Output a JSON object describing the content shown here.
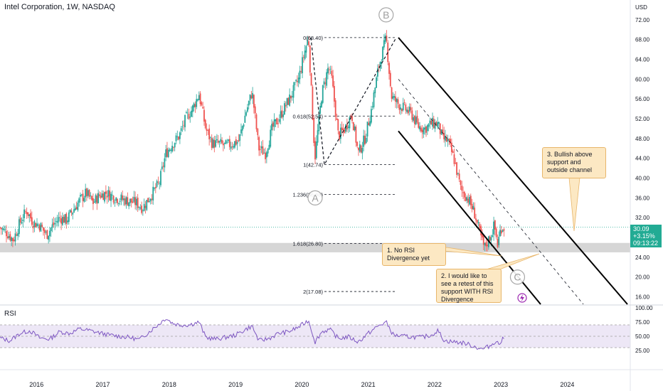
{
  "header": {
    "title": "Intel Corporation, 1W, NASDAQ",
    "currency": "USD"
  },
  "rsi_panel": {
    "label": "RSI"
  },
  "price_tag": {
    "price": "30.09",
    "change": "+3.15%",
    "time": "09:13:22"
  },
  "notes": [
    "1. No RSI Divergence yet",
    "2. I would like to see a retest of this support WITH RSI Divergence",
    "3. Bullish above support and outside channel"
  ],
  "wave_labels": [
    "A",
    "B",
    "C"
  ],
  "colors": {
    "up": "#26a69a",
    "down": "#ef5350",
    "rsi": "#7e57c2",
    "rsi_band": "#ede7f6",
    "support_zone": "#cfcfcf",
    "price_line": "#22ab94",
    "note_bg": "#fce8c3",
    "note_border": "#e8b66b",
    "lightning": "#9c27b0"
  },
  "chart_data": [
    {
      "type": "candlestick",
      "title": "Intel Corporation, 1W, NASDAQ",
      "x_ticks": [
        2016,
        2017,
        2018,
        2019,
        2020,
        2021,
        2022,
        2023,
        2024
      ],
      "y_ticks": [
        "72.00",
        "68.00",
        "64.00",
        "60.00",
        "56.00",
        "52.00",
        "48.00",
        "44.00",
        "40.00",
        "36.00",
        "32.00",
        "28.00",
        "24.00",
        "20.00",
        "16.00"
      ],
      "ylim": [
        14.5,
        76
      ],
      "xlim": [
        2015.45,
        2024.95
      ],
      "current_price": 30.09,
      "close_path": [
        [
          2015.45,
          30.0
        ],
        [
          2015.55,
          29.0
        ],
        [
          2015.65,
          27.5
        ],
        [
          2015.75,
          31.0
        ],
        [
          2015.85,
          33.5
        ],
        [
          2015.95,
          31.0
        ],
        [
          2016.05,
          30.5
        ],
        [
          2016.15,
          28.5
        ],
        [
          2016.25,
          30.5
        ],
        [
          2016.35,
          32.0
        ],
        [
          2016.45,
          31.5
        ],
        [
          2016.55,
          33.5
        ],
        [
          2016.65,
          35.5
        ],
        [
          2016.75,
          37.0
        ],
        [
          2016.85,
          35.0
        ],
        [
          2016.95,
          36.5
        ],
        [
          2017.05,
          37.0
        ],
        [
          2017.2,
          36.0
        ],
        [
          2017.35,
          35.5
        ],
        [
          2017.5,
          35.0
        ],
        [
          2017.6,
          34.0
        ],
        [
          2017.7,
          36.0
        ],
        [
          2017.85,
          39.0
        ],
        [
          2017.95,
          45.0
        ],
        [
          2018.05,
          47.0
        ],
        [
          2018.15,
          48.5
        ],
        [
          2018.25,
          52.0
        ],
        [
          2018.35,
          54.0
        ],
        [
          2018.45,
          57.0
        ],
        [
          2018.55,
          50.0
        ],
        [
          2018.65,
          47.0
        ],
        [
          2018.75,
          47.0
        ],
        [
          2018.85,
          46.5
        ],
        [
          2018.95,
          47.0
        ],
        [
          2019.05,
          47.5
        ],
        [
          2019.15,
          53.0
        ],
        [
          2019.25,
          57.5
        ],
        [
          2019.35,
          46.0
        ],
        [
          2019.45,
          45.0
        ],
        [
          2019.55,
          50.0
        ],
        [
          2019.65,
          52.0
        ],
        [
          2019.75,
          54.5
        ],
        [
          2019.85,
          57.0
        ],
        [
          2019.95,
          60.0
        ],
        [
          2020.05,
          66.0
        ],
        [
          2020.1,
          68.4
        ],
        [
          2020.18,
          48.0
        ],
        [
          2020.2,
          44.5
        ],
        [
          2020.3,
          57.0
        ],
        [
          2020.4,
          62.5
        ],
        [
          2020.45,
          60.0
        ],
        [
          2020.55,
          48.5
        ],
        [
          2020.65,
          50.0
        ],
        [
          2020.75,
          53.0
        ],
        [
          2020.85,
          45.0
        ],
        [
          2020.95,
          48.0
        ],
        [
          2021.05,
          54.0
        ],
        [
          2021.15,
          62.0
        ],
        [
          2021.27,
          68.4
        ],
        [
          2021.35,
          56.5
        ],
        [
          2021.45,
          55.0
        ],
        [
          2021.55,
          54.0
        ],
        [
          2021.65,
          53.0
        ],
        [
          2021.75,
          50.5
        ],
        [
          2021.85,
          50.0
        ],
        [
          2021.95,
          51.0
        ],
        [
          2022.05,
          51.0
        ],
        [
          2022.12,
          48.0
        ],
        [
          2022.2,
          47.5
        ],
        [
          2022.3,
          43.5
        ],
        [
          2022.4,
          37.5
        ],
        [
          2022.5,
          36.0
        ],
        [
          2022.6,
          33.0
        ],
        [
          2022.7,
          28.0
        ],
        [
          2022.75,
          25.8
        ],
        [
          2022.85,
          28.5
        ],
        [
          2022.9,
          30.5
        ],
        [
          2022.95,
          26.5
        ],
        [
          2023.0,
          30.0
        ],
        [
          2023.05,
          30.09
        ]
      ],
      "annotations": {
        "fib_levels": [
          {
            "label": "0(68.40)",
            "value": 68.4
          },
          {
            "label": "0.618(52.54)",
            "value": 52.54
          },
          {
            "label": "1(42.74)",
            "value": 42.74
          },
          {
            "label": "1.236(36.68)",
            "value": 36.68
          },
          {
            "label": "1.618(26.80)",
            "value": 26.8
          },
          {
            "label": "2(17.08)",
            "value": 17.08
          }
        ],
        "support_zone": [
          25.0,
          26.9
        ],
        "waves": [
          {
            "label": "A",
            "x": 2020.2,
            "y": 36.0
          },
          {
            "label": "B",
            "x": 2021.27,
            "y": 73.0
          },
          {
            "label": "C",
            "x": 2023.25,
            "y": 20.0
          }
        ]
      }
    },
    {
      "type": "line",
      "title": "RSI",
      "x_ticks": [
        2016,
        2017,
        2018,
        2019,
        2020,
        2021,
        2022,
        2023,
        2024
      ],
      "y_ticks": [
        "100.00",
        "75.00",
        "50.00",
        "25.00"
      ],
      "ylim": [
        0,
        100
      ],
      "bands": [
        30,
        70
      ],
      "series": [
        {
          "values": [
            [
              2015.45,
              47
            ],
            [
              2015.6,
              42
            ],
            [
              2015.75,
              55
            ],
            [
              2015.9,
              60
            ],
            [
              2016.05,
              47
            ],
            [
              2016.2,
              45
            ],
            [
              2016.35,
              58
            ],
            [
              2016.5,
              55
            ],
            [
              2016.65,
              63
            ],
            [
              2016.8,
              60
            ],
            [
              2016.95,
              56
            ],
            [
              2017.1,
              52
            ],
            [
              2017.25,
              50
            ],
            [
              2017.4,
              48
            ],
            [
              2017.55,
              44
            ],
            [
              2017.7,
              58
            ],
            [
              2017.85,
              72
            ],
            [
              2017.95,
              82
            ],
            [
              2018.05,
              73
            ],
            [
              2018.15,
              70
            ],
            [
              2018.3,
              70
            ],
            [
              2018.45,
              75
            ],
            [
              2018.55,
              48
            ],
            [
              2018.7,
              45
            ],
            [
              2018.85,
              48
            ],
            [
              2019.0,
              52
            ],
            [
              2019.15,
              62
            ],
            [
              2019.25,
              68
            ],
            [
              2019.35,
              42
            ],
            [
              2019.5,
              46
            ],
            [
              2019.65,
              55
            ],
            [
              2019.8,
              58
            ],
            [
              2019.95,
              66
            ],
            [
              2020.1,
              78
            ],
            [
              2020.2,
              40
            ],
            [
              2020.3,
              58
            ],
            [
              2020.42,
              62
            ],
            [
              2020.55,
              46
            ],
            [
              2020.7,
              49
            ],
            [
              2020.85,
              40
            ],
            [
              2021.0,
              55
            ],
            [
              2021.15,
              68
            ],
            [
              2021.27,
              75
            ],
            [
              2021.38,
              52
            ],
            [
              2021.5,
              50
            ],
            [
              2021.65,
              49
            ],
            [
              2021.8,
              48
            ],
            [
              2021.95,
              52
            ],
            [
              2022.05,
              60
            ],
            [
              2022.15,
              42
            ],
            [
              2022.3,
              40
            ],
            [
              2022.45,
              38
            ],
            [
              2022.6,
              32
            ],
            [
              2022.72,
              27
            ],
            [
              2022.85,
              34
            ],
            [
              2022.92,
              42
            ],
            [
              2022.97,
              36
            ],
            [
              2023.05,
              48
            ]
          ]
        }
      ]
    }
  ]
}
